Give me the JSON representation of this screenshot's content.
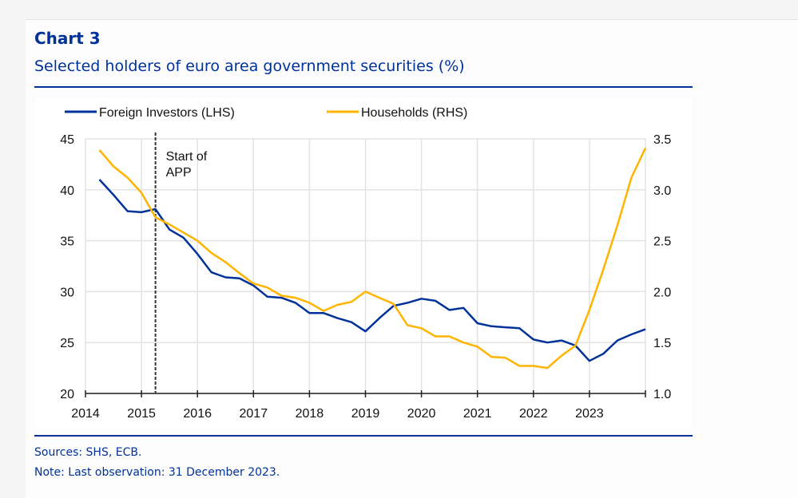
{
  "header": {
    "title": "Chart 3",
    "subtitle": "Selected holders of euro area government securities (%)"
  },
  "footer": {
    "sources": "Sources: SHS, ECB.",
    "note": "Note: Last observation: 31 December 2023."
  },
  "chart_data": {
    "type": "line",
    "title": "Selected holders of euro area government securities (%)",
    "legend_placement": "top-left",
    "grid": true,
    "x_ticks": [
      "2014",
      "2015",
      "2016",
      "2017",
      "2018",
      "2019",
      "2020",
      "2021",
      "2022",
      "2023"
    ],
    "xlim": [
      2014,
      2024
    ],
    "y_left": {
      "ylim": [
        20,
        45
      ],
      "ticks": [
        "20",
        "25",
        "30",
        "35",
        "40",
        "45"
      ]
    },
    "y_right": {
      "ylim": [
        1.0,
        3.5
      ],
      "ticks": [
        "1.0",
        "1.5",
        "2.0",
        "2.5",
        "3.0",
        "3.5"
      ]
    },
    "annotation": {
      "x": 2015.25,
      "lines": [
        "Start of",
        "APP"
      ]
    },
    "x": [
      2014.25,
      2014.5,
      2014.75,
      2015,
      2015.25,
      2015.5,
      2015.75,
      2016,
      2016.25,
      2016.5,
      2016.75,
      2017,
      2017.25,
      2017.5,
      2017.75,
      2018,
      2018.25,
      2018.5,
      2018.75,
      2019,
      2019.25,
      2019.5,
      2019.75,
      2020,
      2020.25,
      2020.5,
      2020.75,
      2021,
      2021.25,
      2021.5,
      2021.75,
      2022,
      2022.25,
      2022.5,
      2022.75,
      2023,
      2023.25,
      2023.5,
      2023.75,
      2024
    ],
    "series": [
      {
        "name": "Foreign Investors (LHS)",
        "axis": "left",
        "color": "#003299",
        "values": [
          41.0,
          39.5,
          37.9,
          37.8,
          38.1,
          36.1,
          35.3,
          33.7,
          31.9,
          31.4,
          31.3,
          30.6,
          29.5,
          29.4,
          28.9,
          27.9,
          27.9,
          27.4,
          27.0,
          26.1,
          27.4,
          28.6,
          28.9,
          29.3,
          29.1,
          28.2,
          28.4,
          26.9,
          26.6,
          26.5,
          26.4,
          25.3,
          25.0,
          25.2,
          24.7,
          23.2,
          23.9,
          25.2,
          25.8,
          26.3
        ]
      },
      {
        "name": "Households (RHS)",
        "axis": "right",
        "color": "#ffb400",
        "values": [
          3.39,
          3.23,
          3.12,
          2.97,
          2.73,
          2.66,
          2.58,
          2.5,
          2.38,
          2.29,
          2.18,
          2.08,
          2.04,
          1.96,
          1.94,
          1.89,
          1.81,
          1.87,
          1.9,
          2.0,
          1.94,
          1.88,
          1.67,
          1.64,
          1.56,
          1.56,
          1.5,
          1.46,
          1.36,
          1.35,
          1.27,
          1.27,
          1.25,
          1.37,
          1.47,
          1.82,
          2.22,
          2.65,
          3.12,
          3.41
        ]
      }
    ]
  }
}
